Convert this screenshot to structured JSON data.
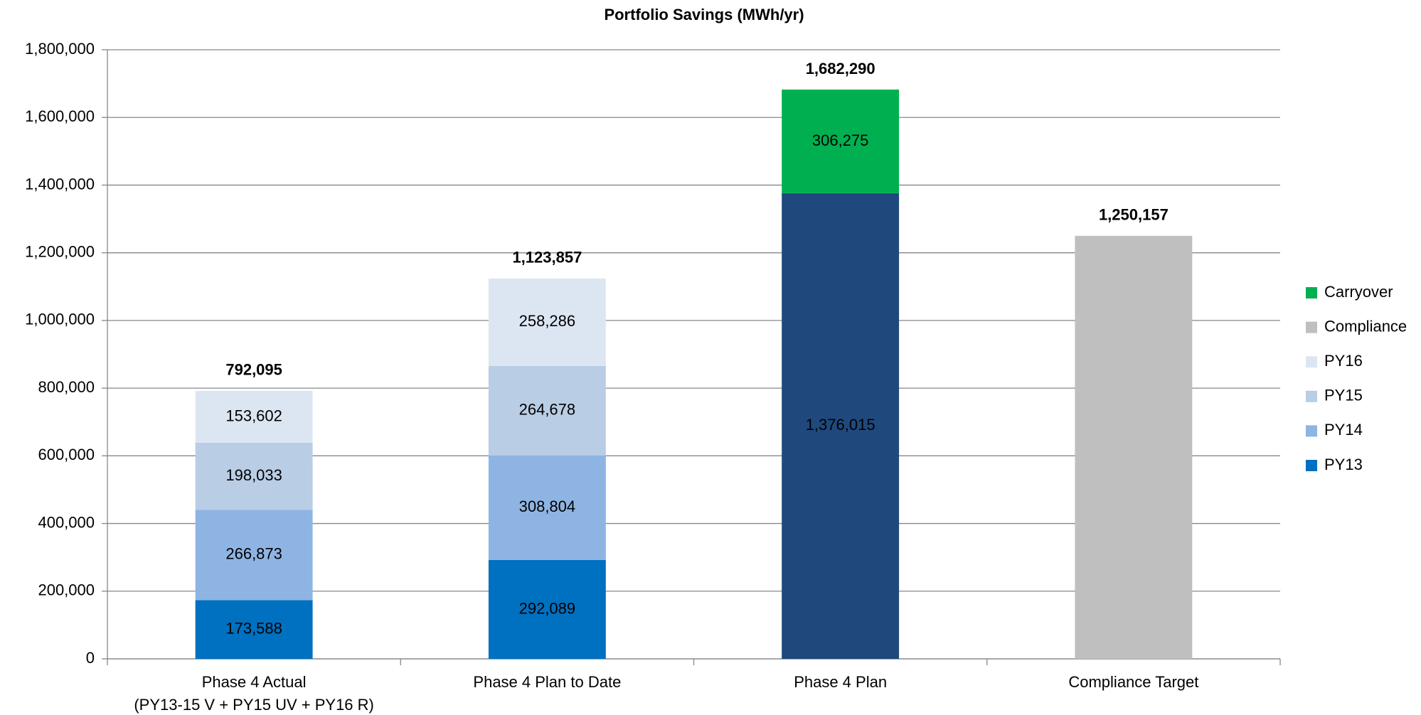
{
  "chart_data": {
    "type": "stacked_bar",
    "title": "Portfolio Savings (MWh/yr)",
    "categories": [
      [
        "Phase 4 Actual",
        "(PY13-15 V + PY15 UV + PY16 R)"
      ],
      [
        "Phase 4 Plan to Date"
      ],
      [
        "Phase 4 Plan"
      ],
      [
        "Compliance Target"
      ]
    ],
    "series": [
      {
        "name": "PY13",
        "color": "#0070c0",
        "point_colors": [
          null,
          null,
          "#1f497d",
          null
        ],
        "label_color": "#ffffff",
        "values": [
          173588,
          292089,
          1376015,
          null
        ],
        "value_labels": [
          "173,588",
          "292,089",
          "1,376,015",
          null
        ]
      },
      {
        "name": "PY14",
        "color": "#8eb4e3",
        "values": [
          266873,
          308804,
          null,
          null
        ],
        "value_labels": [
          "266,873",
          "308,804",
          null,
          null
        ]
      },
      {
        "name": "PY15",
        "color": "#b9cde5",
        "values": [
          198033,
          264678,
          null,
          null
        ],
        "value_labels": [
          "198,033",
          "264,678",
          null,
          null
        ]
      },
      {
        "name": "PY16",
        "color": "#dce6f2",
        "values": [
          153602,
          258286,
          null,
          null
        ],
        "value_labels": [
          "153,602",
          "258,286",
          null,
          null
        ]
      },
      {
        "name": "Compliance",
        "color": "#bfbfbf",
        "values": [
          null,
          null,
          null,
          1250157
        ]
      },
      {
        "name": "Carryover",
        "color": "#00b050",
        "values": [
          null,
          null,
          306275,
          null
        ],
        "value_labels": [
          null,
          null,
          "306,275",
          null
        ]
      }
    ],
    "totals": [
      792095,
      1123857,
      1682290,
      1250157
    ],
    "total_labels": [
      "792,095",
      "1,123,857",
      "1,682,290",
      "1,250,157"
    ],
    "ylim": [
      0,
      1800000
    ],
    "yticks": [
      0,
      {
        "value": 200000,
        "label": "200,000"
      },
      {
        "value": 400000,
        "label": "400,000"
      },
      {
        "value": 600000,
        "label": "600,000"
      },
      {
        "value": 800000,
        "label": "800,000"
      },
      {
        "value": 1000000,
        "label": "1,000,000"
      },
      {
        "value": 1200000,
        "label": "1,200,000"
      },
      {
        "value": 1400000,
        "label": "1,400,000"
      },
      {
        "value": 1600000,
        "label": "1,600,000"
      },
      {
        "value": 1800000,
        "label": "1,800,000"
      }
    ],
    "grid": true,
    "legend": "right"
  }
}
